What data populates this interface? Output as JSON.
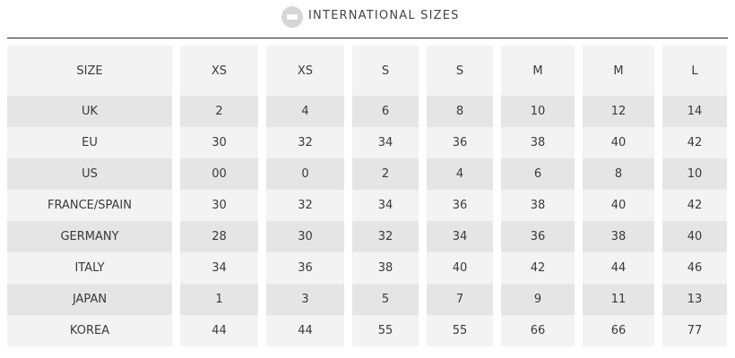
{
  "header": {
    "icon": "size-tag-icon",
    "title": "INTERNATIONAL SIZES"
  },
  "colors": {
    "row_dark": "#e5e5e5",
    "row_light": "#f3f3f3",
    "rule": "#222222",
    "icon": "#d6d6d6"
  },
  "table": {
    "header_label": "SIZE",
    "sizes": [
      "XS",
      "XS",
      "S",
      "S",
      "M",
      "M",
      "L"
    ],
    "rows": [
      {
        "label": "UK",
        "values": [
          "2",
          "4",
          "6",
          "8",
          "10",
          "12",
          "14"
        ]
      },
      {
        "label": "EU",
        "values": [
          "30",
          "32",
          "34",
          "36",
          "38",
          "40",
          "42"
        ]
      },
      {
        "label": "US",
        "values": [
          "00",
          "0",
          "2",
          "4",
          "6",
          "8",
          "10"
        ]
      },
      {
        "label": "FRANCE/SPAIN",
        "values": [
          "30",
          "32",
          "34",
          "36",
          "38",
          "40",
          "42"
        ]
      },
      {
        "label": "GERMANY",
        "values": [
          "28",
          "30",
          "32",
          "34",
          "36",
          "38",
          "40"
        ]
      },
      {
        "label": "ITALY",
        "values": [
          "34",
          "36",
          "38",
          "40",
          "42",
          "44",
          "46"
        ]
      },
      {
        "label": "JAPAN",
        "values": [
          "1",
          "3",
          "5",
          "7",
          "9",
          "11",
          "13"
        ]
      },
      {
        "label": "KOREA",
        "values": [
          "44",
          "44",
          "55",
          "55",
          "66",
          "66",
          "77"
        ]
      }
    ]
  }
}
